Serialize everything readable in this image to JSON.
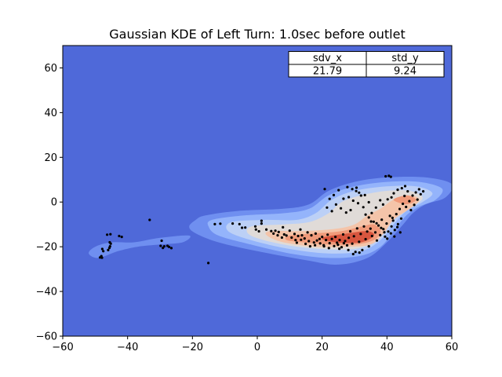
{
  "chart_data": {
    "type": "scatter",
    "title": "Gaussian KDE of Left Turn: 1.0sec before outlet",
    "xlabel": "",
    "ylabel": "",
    "xlim": [
      -60,
      60
    ],
    "ylim": [
      -60,
      70
    ],
    "xticks": [
      -60,
      -40,
      -20,
      0,
      20,
      40,
      60
    ],
    "yticks": [
      -60,
      -40,
      -20,
      0,
      20,
      40,
      60
    ],
    "grid": false,
    "background_color": "#4f69d9",
    "colormap": "coolwarm",
    "table": {
      "placement": "top-right",
      "headers": [
        "sdv_x",
        "std_y"
      ],
      "values": [
        "21.79",
        "9.24"
      ]
    },
    "kde_contours": [
      {
        "level": 1,
        "color": "#6f8ff0",
        "blobs": [
          {
            "points": [
              [
                -21,
                -15
              ],
              [
                -23,
                -18
              ],
              [
                -30,
                -19
              ],
              [
                -37,
                -20
              ],
              [
                -43,
                -22
              ],
              [
                -49,
                -25
              ],
              [
                -52,
                -23
              ],
              [
                -50,
                -20
              ],
              [
                -45,
                -18
              ],
              [
                -38,
                -18
              ],
              [
                -30,
                -16
              ]
            ]
          },
          {
            "points": [
              [
                -19,
                -8
              ],
              [
                -16,
                -6
              ],
              [
                -6,
                -4
              ],
              [
                8,
                -3
              ],
              [
                16,
                -1
              ],
              [
                22,
                5
              ],
              [
                30,
                9
              ],
              [
                40,
                11
              ],
              [
                52,
                11
              ],
              [
                60,
                8
              ],
              [
                58,
                2
              ],
              [
                52,
                -1
              ],
              [
                48,
                -5
              ],
              [
                45,
                -10
              ],
              [
                40,
                -18
              ],
              [
                34,
                -25
              ],
              [
                25,
                -28
              ],
              [
                15,
                -26
              ],
              [
                0,
                -22
              ],
              [
                -12,
                -18
              ],
              [
                -19,
                -14
              ],
              [
                -21,
                -11
              ]
            ]
          }
        ]
      },
      {
        "level": 2,
        "color": "#94b4fb",
        "blobs": [
          {
            "points": [
              [
                -14,
                -8
              ],
              [
                -4,
                -6
              ],
              [
                8,
                -5
              ],
              [
                16,
                -3
              ],
              [
                22,
                3
              ],
              [
                30,
                7
              ],
              [
                40,
                9
              ],
              [
                50,
                9
              ],
              [
                57,
                6
              ],
              [
                55,
                1
              ],
              [
                50,
                -2
              ],
              [
                46,
                -6
              ],
              [
                42,
                -13
              ],
              [
                38,
                -20
              ],
              [
                32,
                -24
              ],
              [
                22,
                -25
              ],
              [
                10,
                -23
              ],
              [
                -2,
                -19
              ],
              [
                -12,
                -15
              ],
              [
                -15,
                -11
              ]
            ]
          }
        ]
      },
      {
        "level": 3,
        "color": "#bcd0f6",
        "blobs": [
          {
            "points": [
              [
                -8,
                -9
              ],
              [
                2,
                -8
              ],
              [
                12,
                -8
              ],
              [
                18,
                -5
              ],
              [
                23,
                1
              ],
              [
                30,
                5
              ],
              [
                40,
                7
              ],
              [
                49,
                7
              ],
              [
                54,
                4
              ],
              [
                51,
                0
              ],
              [
                46,
                -4
              ],
              [
                42,
                -10
              ],
              [
                38,
                -17
              ],
              [
                32,
                -22
              ],
              [
                22,
                -23
              ],
              [
                10,
                -21
              ],
              [
                -2,
                -17
              ],
              [
                -9,
                -13
              ]
            ]
          }
        ]
      },
      {
        "level": 4,
        "color": "#e0dbd8",
        "blobs": [
          {
            "points": [
              [
                -2,
                -11
              ],
              [
                8,
                -10
              ],
              [
                16,
                -9
              ],
              [
                22,
                -5
              ],
              [
                26,
                0
              ],
              [
                32,
                3
              ],
              [
                40,
                5
              ],
              [
                47,
                5
              ],
              [
                51,
                2
              ],
              [
                48,
                -2
              ],
              [
                43,
                -6
              ],
              [
                40,
                -12
              ],
              [
                36,
                -18
              ],
              [
                30,
                -21
              ],
              [
                20,
                -21
              ],
              [
                8,
                -19
              ],
              [
                -2,
                -15
              ]
            ]
          }
        ]
      },
      {
        "level": 5,
        "color": "#f4c4a9",
        "blobs": [
          {
            "points": [
              [
                4,
                -13
              ],
              [
                14,
                -13
              ],
              [
                24,
                -12
              ],
              [
                30,
                -10
              ],
              [
                34,
                -6
              ],
              [
                38,
                -3
              ],
              [
                42,
                1
              ],
              [
                47,
                3
              ],
              [
                50,
                1
              ],
              [
                47,
                -3
              ],
              [
                42,
                -8
              ],
              [
                39,
                -14
              ],
              [
                35,
                -19
              ],
              [
                28,
                -20
              ],
              [
                18,
                -20
              ],
              [
                8,
                -18
              ],
              [
                3,
                -15
              ]
            ]
          }
        ]
      },
      {
        "level": 6,
        "color": "#f09a7a",
        "blobs": [
          {
            "points": [
              [
                10,
                -15
              ],
              [
                18,
                -14
              ],
              [
                26,
                -13
              ],
              [
                32,
                -11
              ],
              [
                36,
                -10
              ],
              [
                38,
                -13
              ],
              [
                36,
                -17
              ],
              [
                30,
                -19
              ],
              [
                22,
                -19
              ],
              [
                14,
                -18
              ],
              [
                9,
                -17
              ]
            ]
          },
          {
            "points": [
              [
                42,
                1
              ],
              [
                46,
                3
              ],
              [
                49,
                1
              ],
              [
                46,
                -1
              ]
            ]
          }
        ]
      },
      {
        "level": 7,
        "color": "#d8563f",
        "blobs": [
          {
            "points": [
              [
                20,
                -16
              ],
              [
                28,
                -14
              ],
              [
                34,
                -13
              ],
              [
                36,
                -15
              ],
              [
                32,
                -18
              ],
              [
                24,
                -18
              ]
            ]
          }
        ]
      }
    ],
    "points": [
      [
        -48.5,
        -24.8
      ],
      [
        -48.1,
        -24.2
      ],
      [
        -47.9,
        -24.9
      ],
      [
        -47.5,
        -22
      ],
      [
        -47.8,
        -21
      ],
      [
        -46,
        -21.5
      ],
      [
        -45.6,
        -20.5
      ],
      [
        -45.4,
        -19.8
      ],
      [
        -45.2,
        -18.6
      ],
      [
        -45.5,
        -18
      ],
      [
        -46.3,
        -14.6
      ],
      [
        -45.3,
        -14.4
      ],
      [
        -42.6,
        -15.2
      ],
      [
        -41.8,
        -15.6
      ],
      [
        -33.2,
        -8
      ],
      [
        -29.5,
        -17.3
      ],
      [
        -29.8,
        -19.6
      ],
      [
        -29.1,
        -20.5
      ],
      [
        -28.7,
        -19.8
      ],
      [
        -27.7,
        -19.6
      ],
      [
        -27.2,
        -20.1
      ],
      [
        -26.5,
        -20.6
      ],
      [
        -15.1,
        -27.3
      ],
      [
        -13.1,
        -9.9
      ],
      [
        -11.4,
        -9.7
      ],
      [
        -7.6,
        -9.6
      ],
      [
        -5.5,
        -9.9
      ],
      [
        -4.7,
        -11.5
      ],
      [
        -3.7,
        -11.4
      ],
      [
        -0.6,
        -10.9
      ],
      [
        -0.4,
        -12.3
      ],
      [
        0.5,
        -13.1
      ],
      [
        1.3,
        -9.6
      ],
      [
        1.3,
        -8.4
      ],
      [
        2.8,
        -12.3
      ],
      [
        4.3,
        -13
      ],
      [
        5,
        -14.1
      ],
      [
        5.6,
        -12.8
      ],
      [
        6.3,
        -14.9
      ],
      [
        6.6,
        -13.4
      ],
      [
        7.6,
        -15.9
      ],
      [
        7.9,
        -11.3
      ],
      [
        8.3,
        -14.5
      ],
      [
        9,
        -15
      ],
      [
        10,
        -12.8
      ],
      [
        10.6,
        -15.9
      ],
      [
        11.5,
        -14.3
      ],
      [
        11.8,
        -17
      ],
      [
        12.6,
        -15.2
      ],
      [
        13.3,
        -12.3
      ],
      [
        13.8,
        -14.9
      ],
      [
        14.6,
        -16.3
      ],
      [
        15.5,
        -13.6
      ],
      [
        15.9,
        -17.5
      ],
      [
        16.7,
        -14.9
      ],
      [
        17.5,
        -18.1
      ],
      [
        18,
        -14.1
      ],
      [
        18.4,
        -17.2
      ],
      [
        19.4,
        -18.5
      ],
      [
        20,
        -15.6
      ],
      [
        20.5,
        -19.3
      ],
      [
        21.2,
        -17
      ],
      [
        21.7,
        -14.6
      ],
      [
        22.3,
        -18.4
      ],
      [
        23,
        -16.5
      ],
      [
        23.7,
        -19.7
      ],
      [
        24.1,
        -15.6
      ],
      [
        24.6,
        -18.2
      ],
      [
        25.4,
        -17
      ],
      [
        26,
        -20.2
      ],
      [
        26.5,
        -14.5
      ],
      [
        27.1,
        -17.4
      ],
      [
        27.7,
        -19.4
      ],
      [
        28.2,
        -16
      ],
      [
        28.7,
        -13.1
      ],
      [
        29.3,
        -18.6
      ],
      [
        29.8,
        -15.3
      ],
      [
        30.3,
        -22.3
      ],
      [
        30.8,
        -11.8
      ],
      [
        31.4,
        -17.8
      ],
      [
        31.9,
        -14.3
      ],
      [
        32.4,
        -21.5
      ],
      [
        32.9,
        -10.9
      ],
      [
        33.4,
        -16.6
      ],
      [
        33.9,
        -13.2
      ],
      [
        34.4,
        -19.8
      ],
      [
        34.9,
        -11.9
      ],
      [
        35.4,
        -15.2
      ],
      [
        35.9,
        -8.8
      ],
      [
        36.4,
        -13.6
      ],
      [
        36.9,
        -17.2
      ],
      [
        37.4,
        -10.5
      ],
      [
        37.9,
        -14.8
      ],
      [
        38.4,
        -7.9
      ],
      [
        38.9,
        -12.1
      ],
      [
        39.4,
        -15.5
      ],
      [
        39.9,
        -9.6
      ],
      [
        40.4,
        -13.2
      ],
      [
        40.9,
        -6.2
      ],
      [
        41.4,
        -10.9
      ],
      [
        41.9,
        -8.3
      ],
      [
        42.4,
        -12.5
      ],
      [
        42.9,
        -5.4
      ],
      [
        43.4,
        -9.9
      ],
      [
        43.9,
        -3.1
      ],
      [
        44.4,
        -7.4
      ],
      [
        44.9,
        -0.8
      ],
      [
        45.4,
        2.7
      ],
      [
        45.9,
        -2.2
      ],
      [
        46.4,
        4.8
      ],
      [
        46.9,
        0.4
      ],
      [
        47.4,
        -3.6
      ],
      [
        47.9,
        2.9
      ],
      [
        48.4,
        -1.3
      ],
      [
        48.9,
        4.3
      ],
      [
        49.4,
        1.1
      ],
      [
        49.9,
        5.7
      ],
      [
        50.4,
        3.5
      ],
      [
        51.2,
        4.8
      ],
      [
        45.6,
        7.1
      ],
      [
        44.6,
        6.2
      ],
      [
        43.3,
        5.5
      ],
      [
        42.1,
        3.9
      ],
      [
        41.4,
        2.1
      ],
      [
        40.2,
        1.2
      ],
      [
        39.6,
        11.5
      ],
      [
        40.6,
        11.7
      ],
      [
        41.2,
        11.3
      ],
      [
        38.8,
        -1.1
      ],
      [
        37.9,
        0.8
      ],
      [
        36.6,
        -2.5
      ],
      [
        35.3,
        -4.9
      ],
      [
        34.4,
        -0.1
      ],
      [
        33.4,
        -5.6
      ],
      [
        32.7,
        -2.3
      ],
      [
        32,
        2.9
      ],
      [
        31.1,
        -0.5
      ],
      [
        30.5,
        4.9
      ],
      [
        29.6,
        0.6
      ],
      [
        28.8,
        -3.6
      ],
      [
        28.2,
        2.2
      ],
      [
        27.4,
        -4.7
      ],
      [
        26.6,
        1.5
      ],
      [
        25.8,
        -2.8
      ],
      [
        25.1,
        5.3
      ],
      [
        24.3,
        -1.1
      ],
      [
        23.6,
        3.1
      ],
      [
        23,
        -4.1
      ],
      [
        22.3,
        1.4
      ],
      [
        21.5,
        -2.5
      ],
      [
        20.8,
        5.8
      ],
      [
        27.8,
        6.7
      ],
      [
        29.3,
        5.8
      ],
      [
        30.6,
        6.4
      ],
      [
        31.4,
        4.2
      ],
      [
        33.2,
        3.1
      ],
      [
        34.4,
        -6.9
      ],
      [
        35.1,
        -8.7
      ],
      [
        36.8,
        -9.5
      ],
      [
        38.2,
        -11.6
      ],
      [
        39.2,
        -13.5
      ],
      [
        40.1,
        -16.4
      ],
      [
        41.2,
        -14
      ],
      [
        42.3,
        -15.4
      ],
      [
        41.7,
        -7.1
      ],
      [
        43.2,
        -11.2
      ],
      [
        44.1,
        -13.6
      ],
      [
        31.5,
        -22.6
      ],
      [
        29.6,
        -23.3
      ],
      [
        28.1,
        -21.5
      ],
      [
        26.7,
        -18.4
      ],
      [
        25.3,
        -20.9
      ],
      [
        24.9,
        -19.1
      ],
      [
        22.1,
        -20.6
      ],
      [
        20.6,
        -19.8
      ],
      [
        19.2,
        -16.5
      ],
      [
        17.8,
        -19.3
      ],
      [
        16.3,
        -19.8
      ],
      [
        14.9,
        -18.7
      ],
      [
        13.5,
        -16.9
      ],
      [
        12.2,
        -18.2
      ]
    ]
  }
}
